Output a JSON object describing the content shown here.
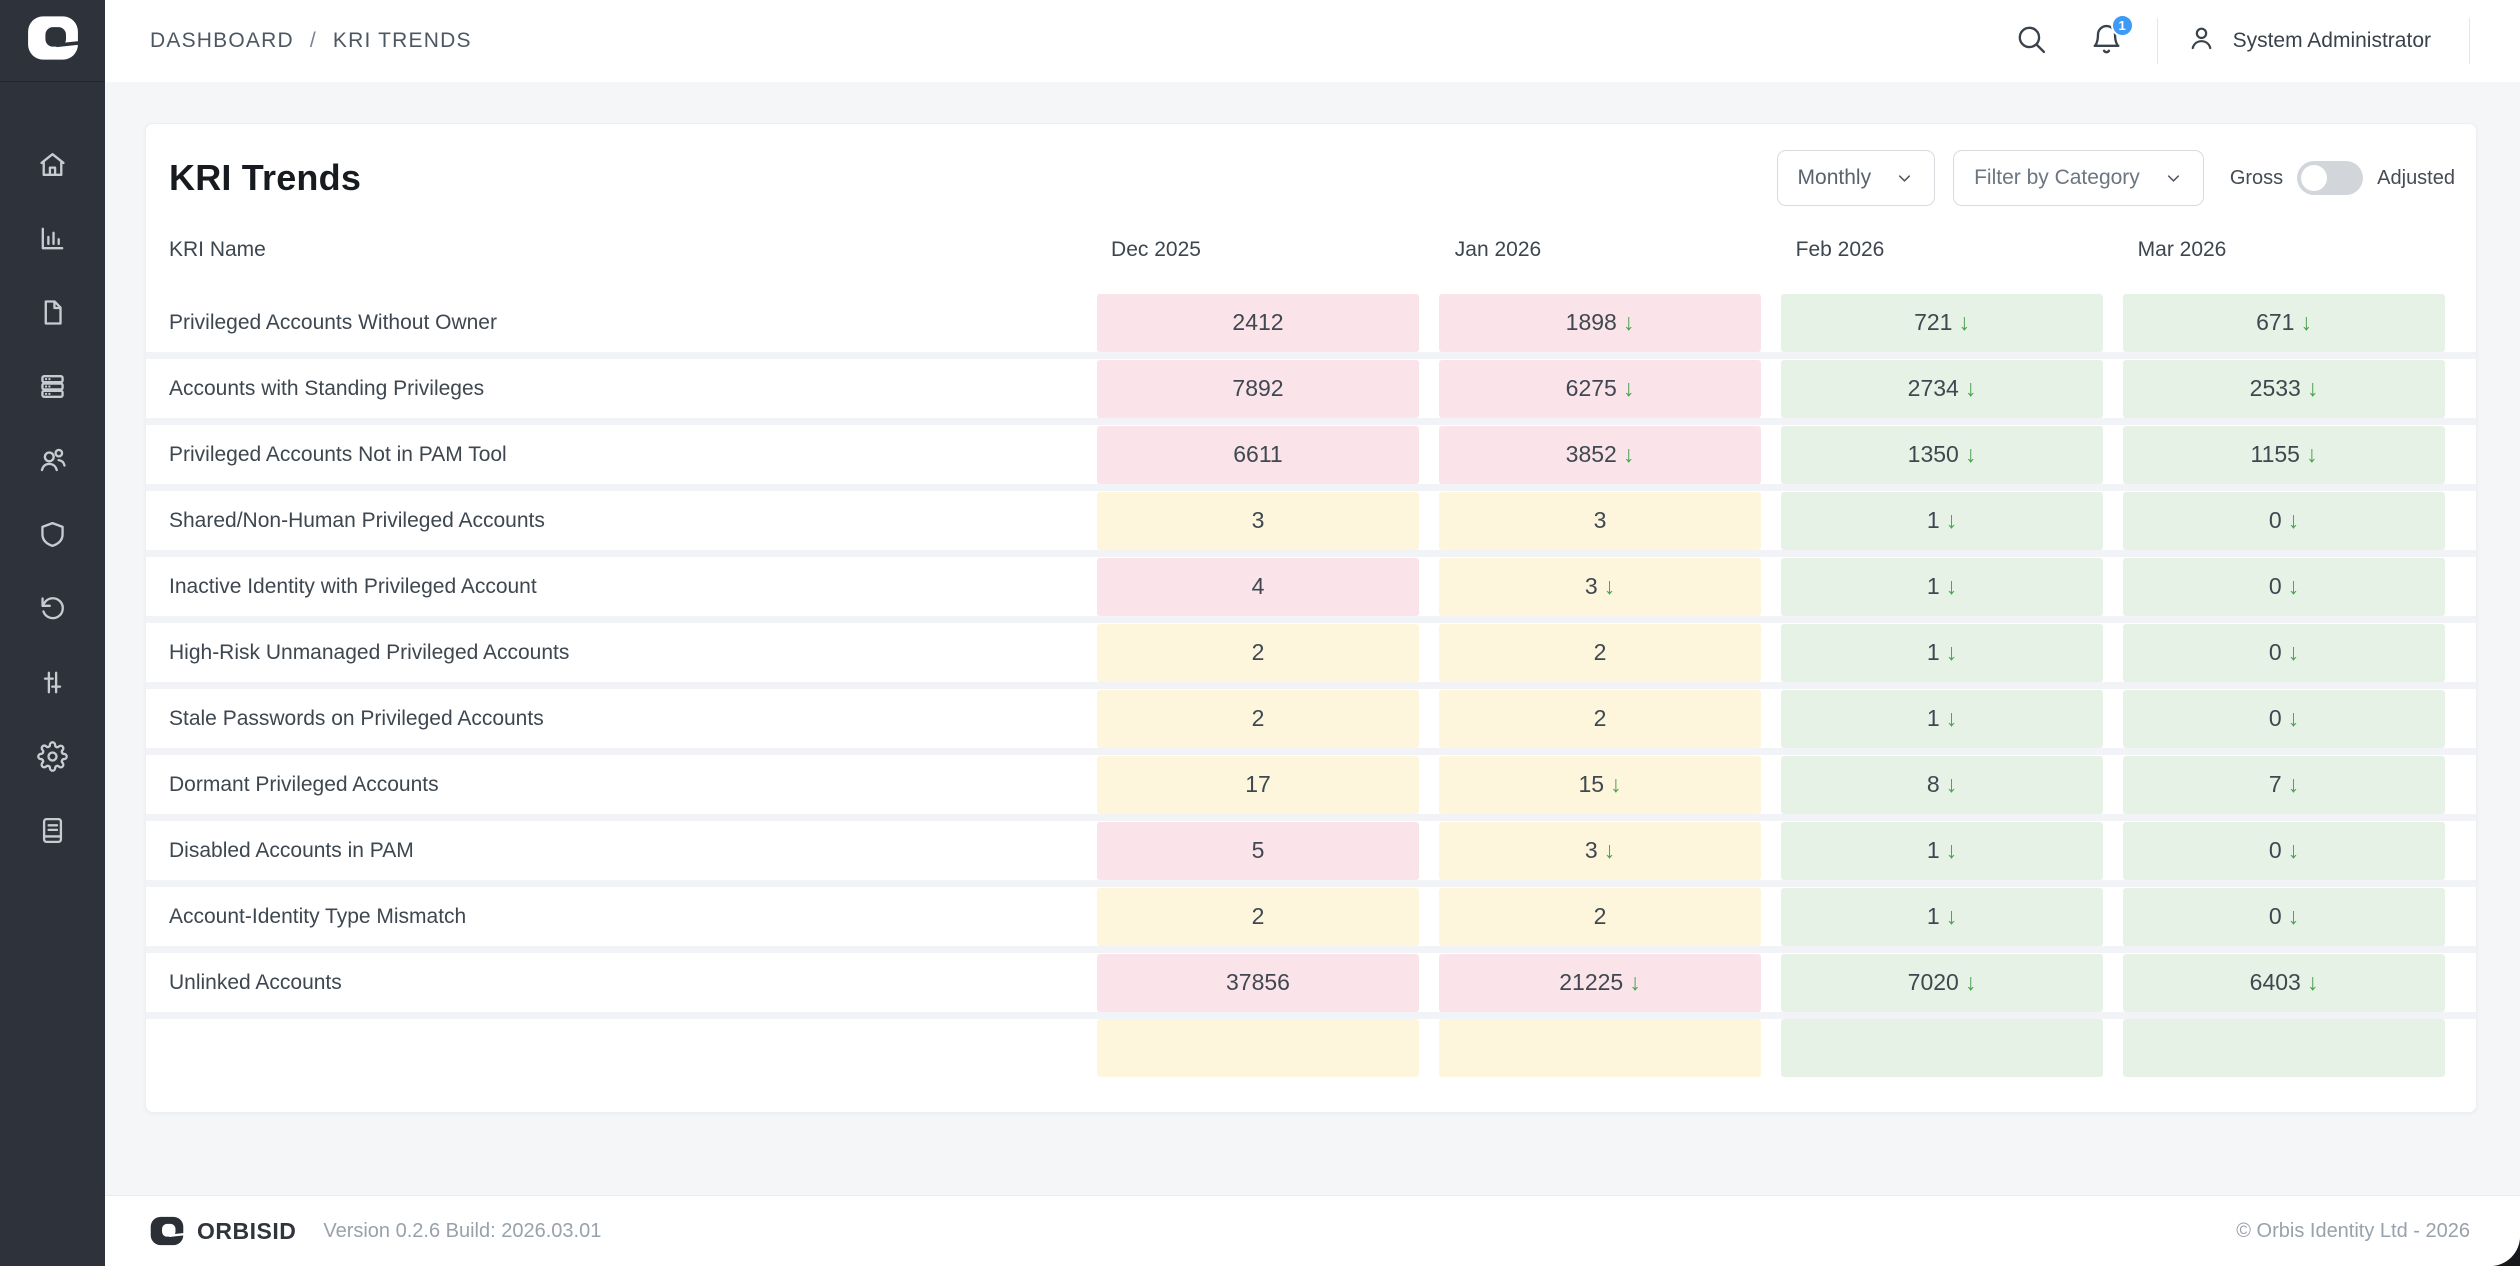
{
  "topbar": {
    "breadcrumb": {
      "items": [
        "DASHBOARD",
        "KRI TRENDS"
      ],
      "separator": "/"
    },
    "notifications_badge": "1",
    "user_name": "System Administrator"
  },
  "sidebar": {
    "items": [
      {
        "icon": "home-icon"
      },
      {
        "icon": "bar-chart-icon"
      },
      {
        "icon": "document-icon"
      },
      {
        "icon": "server-icon"
      },
      {
        "icon": "users-icon"
      },
      {
        "icon": "shield-icon"
      },
      {
        "icon": "history-icon"
      },
      {
        "icon": "sliders-icon"
      },
      {
        "icon": "gear-icon"
      },
      {
        "icon": "book-icon"
      }
    ]
  },
  "page": {
    "title": "KRI Trends"
  },
  "controls": {
    "period_value": "Monthly",
    "category_value": "Filter by Category",
    "toggle_left_label": "Gross",
    "toggle_right_label": "Adjusted",
    "toggle_state": "left"
  },
  "table": {
    "columns": [
      "KRI Name",
      "Dec 2025",
      "Jan 2026",
      "Feb 2026",
      "Mar 2026"
    ],
    "rows": [
      {
        "name": "Privileged Accounts Without Owner",
        "cells": [
          {
            "value": "2412",
            "trend": null,
            "severity": "red"
          },
          {
            "value": "1898",
            "trend": "down",
            "severity": "red"
          },
          {
            "value": "721",
            "trend": "down",
            "severity": "green"
          },
          {
            "value": "671",
            "trend": "down",
            "severity": "green"
          }
        ]
      },
      {
        "name": "Accounts with Standing Privileges",
        "cells": [
          {
            "value": "7892",
            "trend": null,
            "severity": "red"
          },
          {
            "value": "6275",
            "trend": "down",
            "severity": "red"
          },
          {
            "value": "2734",
            "trend": "down",
            "severity": "green"
          },
          {
            "value": "2533",
            "trend": "down",
            "severity": "green"
          }
        ]
      },
      {
        "name": "Privileged Accounts Not in PAM Tool",
        "cells": [
          {
            "value": "6611",
            "trend": null,
            "severity": "red"
          },
          {
            "value": "3852",
            "trend": "down",
            "severity": "red"
          },
          {
            "value": "1350",
            "trend": "down",
            "severity": "green"
          },
          {
            "value": "1155",
            "trend": "down",
            "severity": "green"
          }
        ]
      },
      {
        "name": "Shared/Non-Human Privileged Accounts",
        "cells": [
          {
            "value": "3",
            "trend": null,
            "severity": "amber"
          },
          {
            "value": "3",
            "trend": null,
            "severity": "amber"
          },
          {
            "value": "1",
            "trend": "down",
            "severity": "green"
          },
          {
            "value": "0",
            "trend": "down",
            "severity": "green"
          }
        ]
      },
      {
        "name": "Inactive Identity with Privileged Account",
        "cells": [
          {
            "value": "4",
            "trend": null,
            "severity": "red"
          },
          {
            "value": "3",
            "trend": "down",
            "severity": "amber"
          },
          {
            "value": "1",
            "trend": "down",
            "severity": "green"
          },
          {
            "value": "0",
            "trend": "down",
            "severity": "green"
          }
        ]
      },
      {
        "name": "High-Risk Unmanaged Privileged Accounts",
        "cells": [
          {
            "value": "2",
            "trend": null,
            "severity": "amber"
          },
          {
            "value": "2",
            "trend": null,
            "severity": "amber"
          },
          {
            "value": "1",
            "trend": "down",
            "severity": "green"
          },
          {
            "value": "0",
            "trend": "down",
            "severity": "green"
          }
        ]
      },
      {
        "name": "Stale Passwords on Privileged Accounts",
        "cells": [
          {
            "value": "2",
            "trend": null,
            "severity": "amber"
          },
          {
            "value": "2",
            "trend": null,
            "severity": "amber"
          },
          {
            "value": "1",
            "trend": "down",
            "severity": "green"
          },
          {
            "value": "0",
            "trend": "down",
            "severity": "green"
          }
        ]
      },
      {
        "name": "Dormant Privileged Accounts",
        "cells": [
          {
            "value": "17",
            "trend": null,
            "severity": "amber"
          },
          {
            "value": "15",
            "trend": "down",
            "severity": "amber"
          },
          {
            "value": "8",
            "trend": "down",
            "severity": "green"
          },
          {
            "value": "7",
            "trend": "down",
            "severity": "green"
          }
        ]
      },
      {
        "name": "Disabled Accounts in PAM",
        "cells": [
          {
            "value": "5",
            "trend": null,
            "severity": "red"
          },
          {
            "value": "3",
            "trend": "down",
            "severity": "amber"
          },
          {
            "value": "1",
            "trend": "down",
            "severity": "green"
          },
          {
            "value": "0",
            "trend": "down",
            "severity": "green"
          }
        ]
      },
      {
        "name": "Account-Identity Type Mismatch",
        "cells": [
          {
            "value": "2",
            "trend": null,
            "severity": "amber"
          },
          {
            "value": "2",
            "trend": null,
            "severity": "amber"
          },
          {
            "value": "1",
            "trend": "down",
            "severity": "green"
          },
          {
            "value": "0",
            "trend": "down",
            "severity": "green"
          }
        ]
      },
      {
        "name": "Unlinked Accounts",
        "cells": [
          {
            "value": "37856",
            "trend": null,
            "severity": "red"
          },
          {
            "value": "21225",
            "trend": "down",
            "severity": "red"
          },
          {
            "value": "7020",
            "trend": "down",
            "severity": "green"
          },
          {
            "value": "6403",
            "trend": "down",
            "severity": "green"
          }
        ]
      }
    ],
    "partial_row_severities": [
      "amber",
      "amber",
      "green",
      "green"
    ]
  },
  "footer": {
    "brand": "ORBISID",
    "version": "Version 0.2.6 Build: 2026.03.01",
    "copyright": "© Orbis Identity Ltd - 2026"
  },
  "icons": {
    "trend_down": "↓"
  },
  "colors": {
    "severity_red_bg": "#fbe4e9",
    "severity_amber_bg": "#fdf6dc",
    "severity_green_bg": "#e7f2e6",
    "trend_down_green": "#4ba34f",
    "badge_blue": "#3d9bf5"
  }
}
